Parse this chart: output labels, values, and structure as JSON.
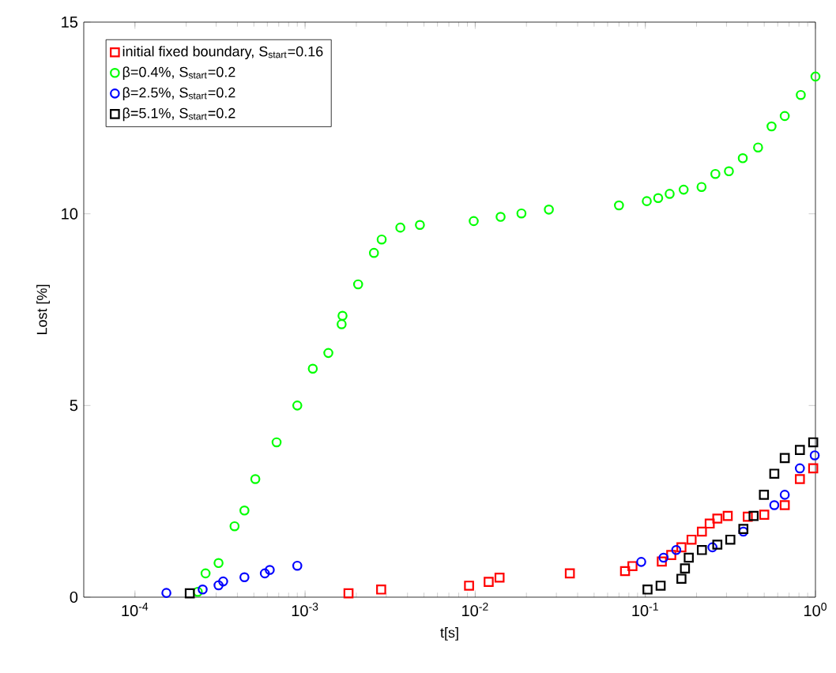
{
  "chart_data": {
    "type": "scatter",
    "xlabel": "t[s]",
    "ylabel": "Lost [%]",
    "log": "x",
    "xlim": [
      5e-05,
      1
    ],
    "ylim": [
      0,
      15
    ],
    "xticks": [
      {
        "value": 0.0001,
        "label": "10$^{-4}$"
      },
      {
        "value": 0.001,
        "label": "10$^{-3}$"
      },
      {
        "value": 0.01,
        "label": "10$^{-2}$"
      },
      {
        "value": 0.1,
        "label": "10$^{-1}$"
      },
      {
        "value": 1,
        "label": "10$^{0}$"
      }
    ],
    "yticks": [
      0,
      5,
      10,
      15
    ],
    "legend": "top left",
    "series": [
      {
        "name": "initial fixed boundary, S$_{start}$=0.16",
        "color": "#ff0000",
        "marker": "square",
        "x": [
          0.0018,
          0.0028,
          0.0092,
          0.012,
          0.0139,
          0.036,
          0.076,
          0.084,
          0.125,
          0.142,
          0.163,
          0.187,
          0.215,
          0.239,
          0.265,
          0.305,
          0.4,
          0.5,
          0.66,
          0.81,
          0.97
        ],
        "values": [
          0.1,
          0.2,
          0.3,
          0.4,
          0.51,
          0.62,
          0.68,
          0.81,
          0.93,
          1.1,
          1.3,
          1.5,
          1.71,
          1.92,
          2.05,
          2.12,
          2.1,
          2.15,
          2.4,
          3.08,
          3.36
        ]
      },
      {
        "name": "β=0.4%, S$_{start}$=0.2",
        "color": "#00ff00",
        "marker": "circle",
        "x": [
          0.000234,
          0.00026,
          0.00031,
          0.000385,
          0.00044,
          0.00051,
          0.00068,
          0.0009,
          0.00111,
          0.00137,
          0.00164,
          0.00166,
          0.00205,
          0.00254,
          0.00282,
          0.00363,
          0.00473,
          0.0098,
          0.0141,
          0.0187,
          0.0271,
          0.07,
          0.102,
          0.119,
          0.139,
          0.168,
          0.214,
          0.258,
          0.31,
          0.374,
          0.46,
          0.552,
          0.66,
          0.82,
          1.0
        ],
        "values": [
          0.14,
          0.62,
          0.89,
          1.85,
          2.26,
          3.08,
          4.04,
          5.0,
          5.96,
          6.37,
          7.12,
          7.34,
          8.16,
          8.98,
          9.33,
          9.64,
          9.71,
          9.81,
          9.92,
          10.01,
          10.11,
          10.22,
          10.33,
          10.41,
          10.52,
          10.63,
          10.7,
          11.04,
          11.11,
          11.45,
          11.73,
          12.28,
          12.55,
          13.1,
          13.58
        ]
      },
      {
        "name": "β=2.5%, S$_{start}$=0.2",
        "color": "#0000ff",
        "marker": "circle",
        "x": [
          0.000153,
          0.00025,
          0.00031,
          0.00033,
          0.00044,
          0.00058,
          0.00062,
          0.0009,
          0.0946,
          0.128,
          0.152,
          0.248,
          0.377,
          0.573,
          0.66,
          0.81,
          0.99
        ],
        "values": [
          0.11,
          0.2,
          0.31,
          0.41,
          0.52,
          0.62,
          0.71,
          0.82,
          0.92,
          1.03,
          1.23,
          1.3,
          1.71,
          2.4,
          2.67,
          3.36,
          3.7
        ]
      },
      {
        "name": "β=5.1%, S$_{start}$=0.2",
        "color": "#000000",
        "marker": "square",
        "x": [
          0.00021,
          0.103,
          0.123,
          0.163,
          0.171,
          0.18,
          0.215,
          0.265,
          0.316,
          0.377,
          0.433,
          0.498,
          0.573,
          0.66,
          0.81,
          0.97
        ],
        "values": [
          0.1,
          0.2,
          0.3,
          0.48,
          0.75,
          1.03,
          1.23,
          1.37,
          1.5,
          1.78,
          2.12,
          2.67,
          3.22,
          3.63,
          3.84,
          4.04
        ]
      }
    ]
  }
}
